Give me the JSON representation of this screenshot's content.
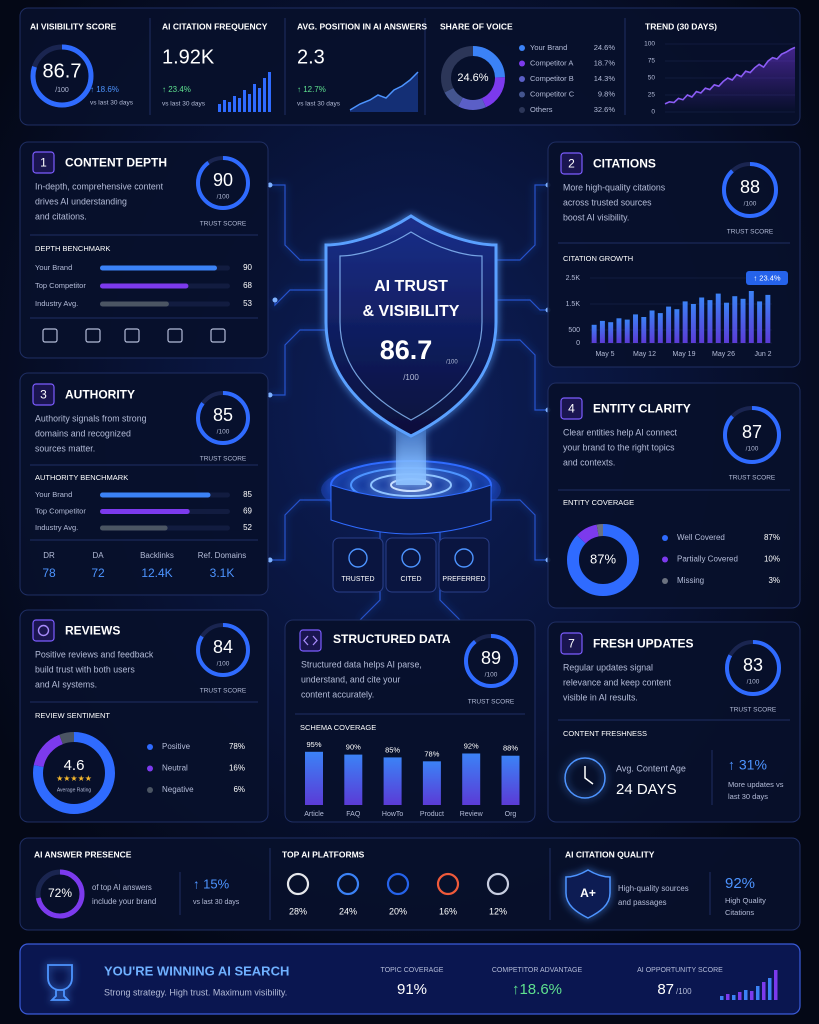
{
  "top_metrics": {
    "visibility": {
      "label": "AI VISIBILITY SCORE",
      "value": "86.7",
      "unit": "/100",
      "change": "↑ 18.6%",
      "period": "vs last 30 days"
    },
    "citation_frequency": {
      "label": "AI CITATION FREQUENCY",
      "value": "1.92K",
      "change": "↑ 23.4%",
      "period": "vs last 30 days"
    },
    "avg_position": {
      "label": "AVG. POSITION IN AI ANSWERS",
      "value": "2.3",
      "change": "↑ 12.7%",
      "period": "vs last 30 days"
    },
    "share_of_voice": {
      "label": "SHARE OF VOICE",
      "center": "24.6%",
      "items": [
        {
          "name": "Your Brand",
          "value": 24.6,
          "label": "24.6%",
          "color": "#3b82f6"
        },
        {
          "name": "Competitor A",
          "value": 18.7,
          "label": "18.7%",
          "color": "#7c3aed"
        },
        {
          "name": "Competitor B",
          "value": 14.3,
          "label": "14.3%",
          "color": "#5b5fc7"
        },
        {
          "name": "Competitor C",
          "value": 9.8,
          "label": "9.8%",
          "color": "#44558f"
        },
        {
          "name": "Others",
          "value": 32.6,
          "label": "32.6%",
          "color": "#2c3658"
        }
      ]
    },
    "trend": {
      "label": "TREND (30 DAYS)",
      "type": "line",
      "ylim": [
        0,
        100
      ],
      "yticks": [
        0,
        25,
        50,
        75,
        100
      ],
      "color": "#8b5cf6",
      "values": [
        12,
        15,
        14,
        20,
        18,
        25,
        22,
        30,
        28,
        35,
        33,
        40,
        38,
        45,
        50,
        47,
        55,
        52,
        60,
        58,
        65,
        70,
        66,
        75,
        80,
        78,
        85,
        88,
        92,
        95
      ]
    }
  },
  "center": {
    "title_line1": "AI TRUST",
    "title_line2": "& VISIBILITY",
    "score": "86.7",
    "unit_right": "/100",
    "unit_below": "/100",
    "badges": [
      "TRUSTED",
      "CITED",
      "PREFERRED"
    ]
  },
  "sections": {
    "content_depth": {
      "number": "1",
      "title": "CONTENT DEPTH",
      "description": [
        "In-depth, comprehensive content",
        "drives AI understanding",
        "and citations."
      ],
      "score": 90,
      "unit": "/100",
      "score_label": "TRUST SCORE",
      "benchmark_title": "DEPTH BENCHMARK",
      "xlim": [
        0,
        100
      ],
      "benchmark": [
        {
          "name": "Your Brand",
          "value": 90
        },
        {
          "name": "Top Competitor",
          "value": 68
        },
        {
          "name": "Industry Avg.",
          "value": 53
        }
      ]
    },
    "citations": {
      "number": "2",
      "title": "CITATIONS",
      "description": [
        "More high-quality citations",
        "across trusted sources",
        "boost AI visibility."
      ],
      "score": 88,
      "unit": "/100",
      "score_label": "TRUST SCORE",
      "growth": {
        "title": "CITATION GROWTH",
        "type": "bar",
        "badge": "↑ 23.4%",
        "ylim": [
          0,
          2500
        ],
        "yticks": [
          0,
          500,
          {
            "value": 1500,
            "label": "1.5K"
          },
          {
            "value": 2500,
            "label": "2.5K"
          }
        ],
        "xlabels": [
          "May 5",
          "May 12",
          "May 19",
          "May 26",
          "Jun 2"
        ],
        "values": [
          700,
          850,
          800,
          950,
          900,
          1100,
          1000,
          1250,
          1150,
          1400,
          1300,
          1600,
          1500,
          1750,
          1650,
          1900,
          1550,
          1800,
          1700,
          2000,
          1600,
          1850
        ]
      }
    },
    "authority": {
      "number": "3",
      "title": "AUTHORITY",
      "description": [
        "Authority signals from strong",
        "domains and recognized",
        "sources matter."
      ],
      "score": 85,
      "unit": "/100",
      "score_label": "TRUST SCORE",
      "benchmark_title": "AUTHORITY BENCHMARK",
      "xlim": [
        0,
        100
      ],
      "benchmark": [
        {
          "name": "Your Brand",
          "value": 85
        },
        {
          "name": "Top Competitor",
          "value": 69
        },
        {
          "name": "Industry Avg.",
          "value": 52
        }
      ],
      "stats": [
        {
          "label": "DR",
          "value": "78"
        },
        {
          "label": "DA",
          "value": "72"
        },
        {
          "label": "Backlinks",
          "value": "12.4K"
        },
        {
          "label": "Ref. Domains",
          "value": "3.1K"
        }
      ]
    },
    "entity_clarity": {
      "number": "4",
      "title": "ENTITY CLARITY",
      "description": [
        "Clear entities help AI connect",
        "your brand to the right topics",
        "and contexts."
      ],
      "score": 87,
      "unit": "/100",
      "score_label": "TRUST SCORE",
      "coverage_title": "ENTITY COVERAGE",
      "center": "87%",
      "items": [
        {
          "name": "Well Covered",
          "value": 87,
          "label": "87%",
          "color": "#2f6bff"
        },
        {
          "name": "Partially Covered",
          "value": 10,
          "label": "10%",
          "color": "#7c3aed"
        },
        {
          "name": "Missing",
          "value": 3,
          "label": "3%",
          "color": "#6b7280"
        }
      ]
    },
    "reviews": {
      "title": "REVIEWS",
      "description": [
        "Positive reviews and feedback",
        "build trust with both users",
        "and AI systems."
      ],
      "score": 84,
      "unit": "/100",
      "score_label": "TRUST SCORE",
      "sentiment_title": "REVIEW SENTIMENT",
      "rating": "4.6",
      "rating_label": "Average Rating",
      "items": [
        {
          "name": "Positive",
          "value": 78,
          "label": "78%",
          "color": "#2f6bff"
        },
        {
          "name": "Neutral",
          "value": 16,
          "label": "16%",
          "color": "#7c3aed"
        },
        {
          "name": "Negative",
          "value": 6,
          "label": "6%",
          "color": "#4b5563"
        }
      ]
    },
    "structured_data": {
      "title": "STRUCTURED DATA",
      "description": [
        "Structured data helps AI parse,",
        "understand, and cite your",
        "content accurately."
      ],
      "score": 89,
      "unit": "/100",
      "score_label": "TRUST SCORE",
      "schema": {
        "title": "SCHEMA COVERAGE",
        "type": "bar",
        "ylim": [
          0,
          100
        ],
        "categories": [
          "Article",
          "FAQ",
          "HowTo",
          "Product",
          "Review",
          "Org"
        ],
        "values": [
          95,
          90,
          85,
          78,
          92,
          88
        ],
        "value_labels": [
          "95%",
          "90%",
          "85%",
          "78%",
          "92%",
          "88%"
        ]
      }
    },
    "fresh_updates": {
      "number": "7",
      "title": "FRESH UPDATES",
      "description": [
        "Regular updates signal",
        "relevance and keep content",
        "visible in AI results."
      ],
      "score": 83,
      "unit": "/100",
      "score_label": "TRUST SCORE",
      "freshness_title": "CONTENT FRESHNESS",
      "age_label": "Avg. Content Age",
      "age_value": "24 DAYS",
      "change": "↑ 31%",
      "change_note": [
        "More updates vs",
        "last 30 days"
      ]
    }
  },
  "bottom": {
    "answer_presence": {
      "title": "AI ANSWER PRESENCE",
      "value": 72,
      "label": "72%",
      "lim": [
        0,
        100
      ],
      "description": [
        "of top AI answers",
        "include your brand"
      ],
      "change": "↑ 15%",
      "period": "vs last 30 days"
    },
    "platforms": {
      "title": "TOP AI PLATFORMS",
      "shares": [
        "28%",
        "24%",
        "20%",
        "16%",
        "12%"
      ]
    },
    "citation_quality": {
      "title": "AI CITATION QUALITY",
      "grade": "A+",
      "description": [
        "High-quality sources",
        "and passages"
      ],
      "value": "92%",
      "value_note": [
        "High Quality",
        "Citations"
      ]
    }
  },
  "banner": {
    "headline": "YOU'RE WINNING AI SEARCH",
    "subline": "Strong strategy. High trust. Maximum visibility.",
    "metrics": [
      {
        "label": "TOPIC COVERAGE",
        "value": "91%"
      },
      {
        "label": "COMPETITOR ADVANTAGE",
        "value": "↑18.6%"
      },
      {
        "label": "AI OPPORTUNITY SCORE",
        "value": "87",
        "unit": "/100"
      }
    ]
  }
}
